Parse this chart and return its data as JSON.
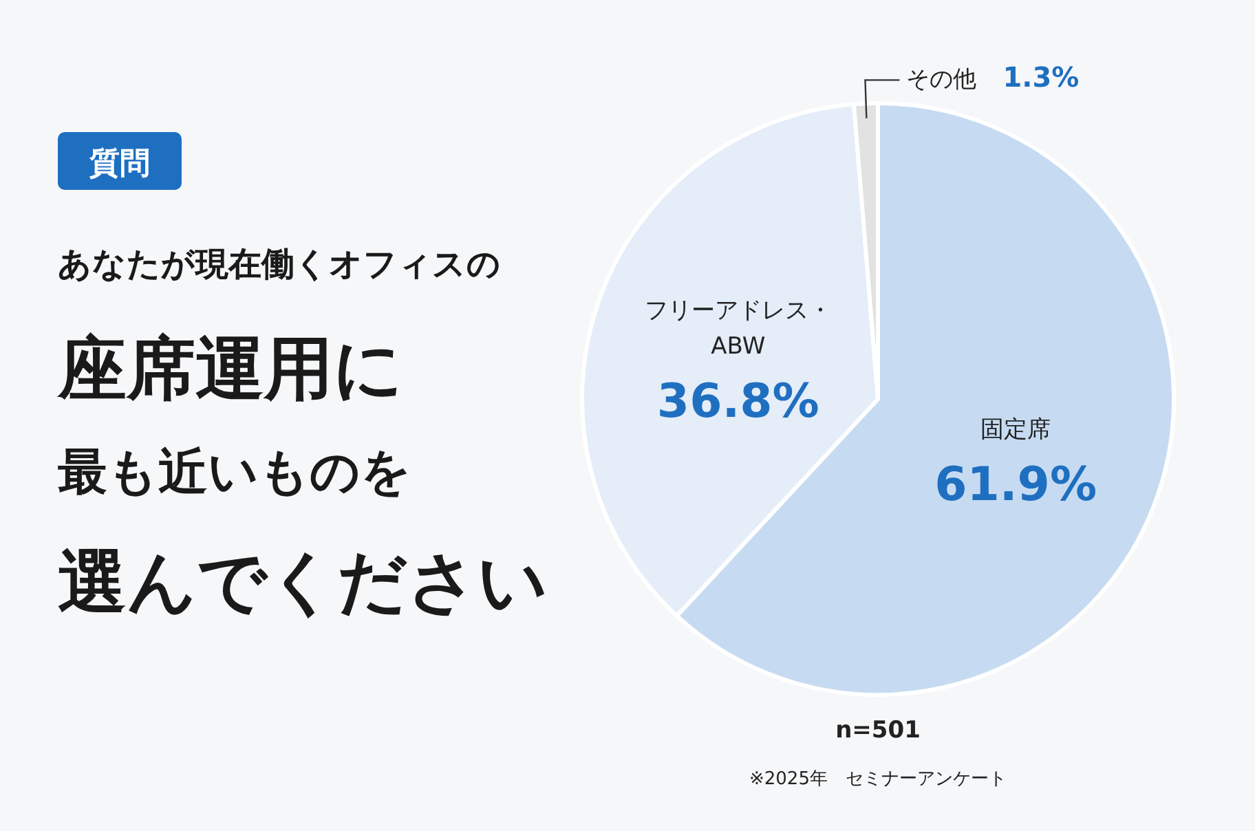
{
  "chart_data": {
    "type": "pie",
    "title": "あなたが現在働くオフィスの座席運用に最も近いものを選んでください",
    "subtitle": "質問",
    "categories": [
      "固定席",
      "フリーアドレス・\nABW",
      "その他"
    ],
    "values": [
      61.9,
      36.8,
      1.3
    ],
    "colors": [
      "#c6dbf1",
      "#e4edf8",
      "#e2e2e2"
    ],
    "value_labels": [
      "61.9%",
      "36.8%",
      "1.3%"
    ],
    "annotations": [
      "n=501",
      "※2025年　セミナーアンケート"
    ]
  }
}
